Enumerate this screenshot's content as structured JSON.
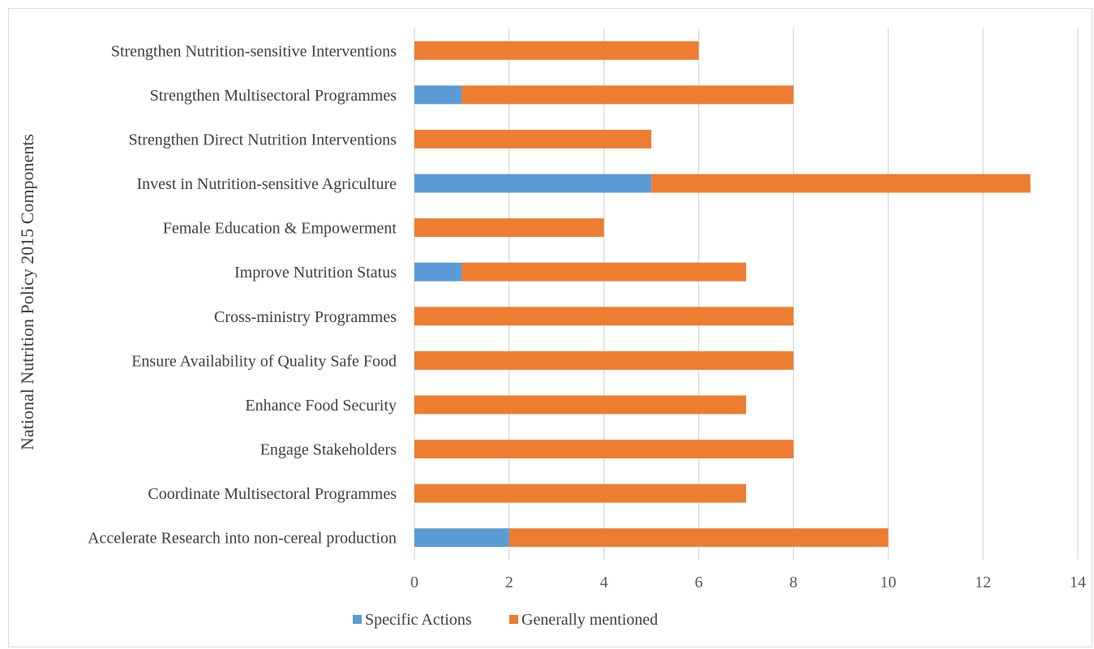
{
  "chart_data": {
    "type": "bar",
    "orientation": "horizontal",
    "stacked": true,
    "title": "",
    "xlabel": "",
    "ylabel": "National Nutrition Policy 2015 Components",
    "categories": [
      "Accelerate Research into non-cereal production",
      "Coordinate Multisectoral Programmes",
      "Engage Stakeholders",
      "Enhance Food Security",
      "Ensure Availability of Quality Safe Food",
      "Cross-ministry Programmes",
      "Improve Nutrition Status",
      "Female Education & Empowerment",
      "Invest in Nutrition-sensitive Agriculture",
      "Strengthen Direct Nutrition Interventions",
      "Strengthen Multisectoral Programmes",
      "Strengthen Nutrition-sensitive Interventions"
    ],
    "series": [
      {
        "name": "Specific Actions",
        "color": "#5b9bd5",
        "values": [
          2,
          0,
          0,
          0,
          0,
          0,
          1,
          0,
          5,
          0,
          1,
          0
        ]
      },
      {
        "name": "Generally mentioned",
        "color": "#ed7d31",
        "values": [
          8,
          7,
          8,
          7,
          8,
          8,
          6,
          4,
          8,
          5,
          7,
          6
        ]
      }
    ],
    "xlim": [
      0,
      14
    ],
    "xticks": [
      "0",
      "2",
      "4",
      "6",
      "8",
      "10",
      "12",
      "14"
    ],
    "grid": "vertical",
    "legend": "bottom"
  }
}
